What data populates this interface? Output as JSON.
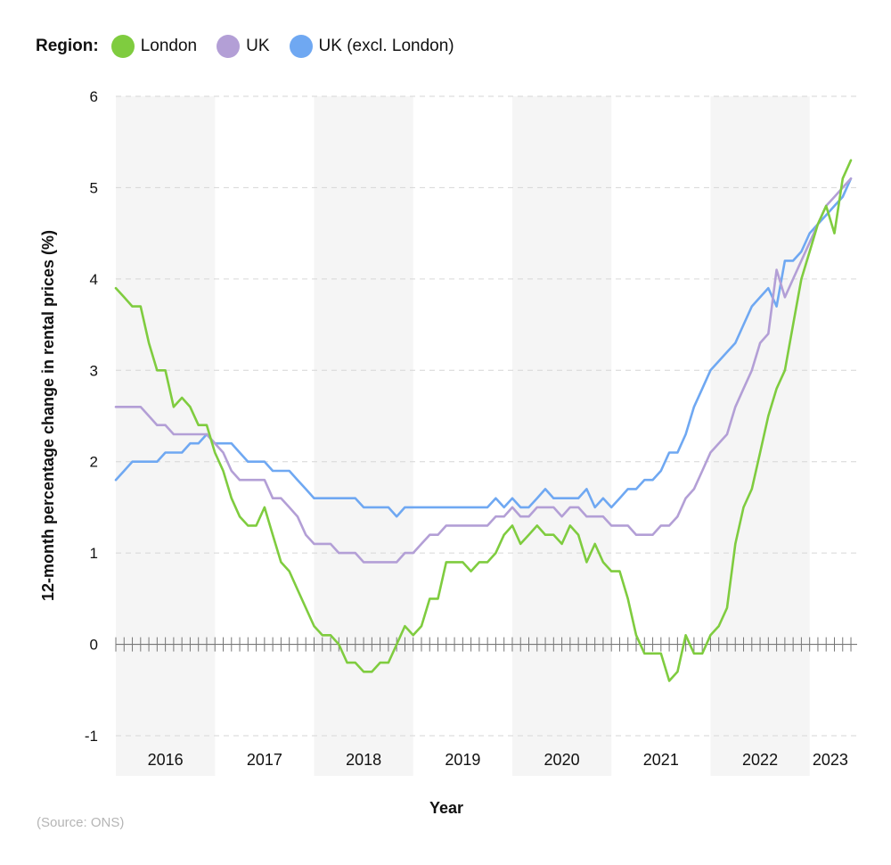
{
  "legend": {
    "title": "Region:",
    "items": [
      {
        "name": "London",
        "color": "#7fcc3f"
      },
      {
        "name": "UK",
        "color": "#b39fd6"
      },
      {
        "name": "UK (excl. London)",
        "color": "#6fa8f2"
      }
    ]
  },
  "source": "(Source: ONS)",
  "chart_data": {
    "type": "line",
    "xlabel": "Year",
    "ylabel": "12-month percentage change in rental prices (%)",
    "ylim": [
      -1,
      6
    ],
    "yticks": [
      -1,
      0,
      1,
      2,
      3,
      4,
      5,
      6
    ],
    "grid": "horizontal dashed",
    "legend_position": "top-left",
    "year_bands": [
      {
        "label": "2016",
        "start_month": 0,
        "end_month": 12,
        "shaded": true
      },
      {
        "label": "2017",
        "start_month": 12,
        "end_month": 24,
        "shaded": false
      },
      {
        "label": "2018",
        "start_month": 24,
        "end_month": 36,
        "shaded": true
      },
      {
        "label": "2019",
        "start_month": 36,
        "end_month": 48,
        "shaded": false
      },
      {
        "label": "2020",
        "start_month": 48,
        "end_month": 60,
        "shaded": true
      },
      {
        "label": "2021",
        "start_month": 60,
        "end_month": 72,
        "shaded": false
      },
      {
        "label": "2022",
        "start_month": 72,
        "end_month": 84,
        "shaded": true
      },
      {
        "label": "2023",
        "start_month": 84,
        "end_month": 89,
        "shaded": false
      }
    ],
    "x_start": "2016-01",
    "x_step": "1 month",
    "series": [
      {
        "name": "London",
        "color": "#7fcc3f",
        "values": [
          3.9,
          3.8,
          3.7,
          3.7,
          3.3,
          3.0,
          3.0,
          2.6,
          2.7,
          2.6,
          2.4,
          2.4,
          2.1,
          1.9,
          1.6,
          1.4,
          1.3,
          1.3,
          1.5,
          1.2,
          0.9,
          0.8,
          0.6,
          0.4,
          0.2,
          0.1,
          0.1,
          0.0,
          -0.2,
          -0.2,
          -0.3,
          -0.3,
          -0.2,
          -0.2,
          0.0,
          0.2,
          0.1,
          0.2,
          0.5,
          0.5,
          0.9,
          0.9,
          0.9,
          0.8,
          0.9,
          0.9,
          1.0,
          1.2,
          1.3,
          1.1,
          1.2,
          1.3,
          1.2,
          1.2,
          1.1,
          1.3,
          1.2,
          0.9,
          1.1,
          0.9,
          0.8,
          0.8,
          0.5,
          0.1,
          -0.1,
          -0.1,
          -0.1,
          -0.4,
          -0.3,
          0.1,
          -0.1,
          -0.1,
          0.1,
          0.2,
          0.4,
          1.1,
          1.5,
          1.7,
          2.1,
          2.5,
          2.8,
          3.0,
          3.5,
          4.0,
          4.3,
          4.6,
          4.8,
          4.5,
          5.1,
          5.3
        ]
      },
      {
        "name": "UK",
        "color": "#b39fd6",
        "values": [
          2.6,
          2.6,
          2.6,
          2.6,
          2.5,
          2.4,
          2.4,
          2.3,
          2.3,
          2.3,
          2.3,
          2.3,
          2.2,
          2.1,
          1.9,
          1.8,
          1.8,
          1.8,
          1.8,
          1.6,
          1.6,
          1.5,
          1.4,
          1.2,
          1.1,
          1.1,
          1.1,
          1.0,
          1.0,
          1.0,
          0.9,
          0.9,
          0.9,
          0.9,
          0.9,
          1.0,
          1.0,
          1.1,
          1.2,
          1.2,
          1.3,
          1.3,
          1.3,
          1.3,
          1.3,
          1.3,
          1.4,
          1.4,
          1.5,
          1.4,
          1.4,
          1.5,
          1.5,
          1.5,
          1.4,
          1.5,
          1.5,
          1.4,
          1.4,
          1.4,
          1.3,
          1.3,
          1.3,
          1.2,
          1.2,
          1.2,
          1.3,
          1.3,
          1.4,
          1.6,
          1.7,
          1.9,
          2.1,
          2.2,
          2.3,
          2.6,
          2.8,
          3.0,
          3.3,
          3.4,
          4.1,
          3.8,
          4.0,
          4.2,
          4.4,
          4.6,
          4.8,
          4.9,
          5.0,
          5.1
        ]
      },
      {
        "name": "UK (excl. London)",
        "color": "#6fa8f2",
        "values": [
          1.8,
          1.9,
          2.0,
          2.0,
          2.0,
          2.0,
          2.1,
          2.1,
          2.1,
          2.2,
          2.2,
          2.3,
          2.2,
          2.2,
          2.2,
          2.1,
          2.0,
          2.0,
          2.0,
          1.9,
          1.9,
          1.9,
          1.8,
          1.7,
          1.6,
          1.6,
          1.6,
          1.6,
          1.6,
          1.6,
          1.5,
          1.5,
          1.5,
          1.5,
          1.4,
          1.5,
          1.5,
          1.5,
          1.5,
          1.5,
          1.5,
          1.5,
          1.5,
          1.5,
          1.5,
          1.5,
          1.6,
          1.5,
          1.6,
          1.5,
          1.5,
          1.6,
          1.7,
          1.6,
          1.6,
          1.6,
          1.6,
          1.7,
          1.5,
          1.6,
          1.5,
          1.6,
          1.7,
          1.7,
          1.8,
          1.8,
          1.9,
          2.1,
          2.1,
          2.3,
          2.6,
          2.8,
          3.0,
          3.1,
          3.2,
          3.3,
          3.5,
          3.7,
          3.8,
          3.9,
          3.7,
          4.2,
          4.2,
          4.3,
          4.5,
          4.6,
          4.7,
          4.8,
          4.9,
          5.1
        ]
      }
    ]
  }
}
